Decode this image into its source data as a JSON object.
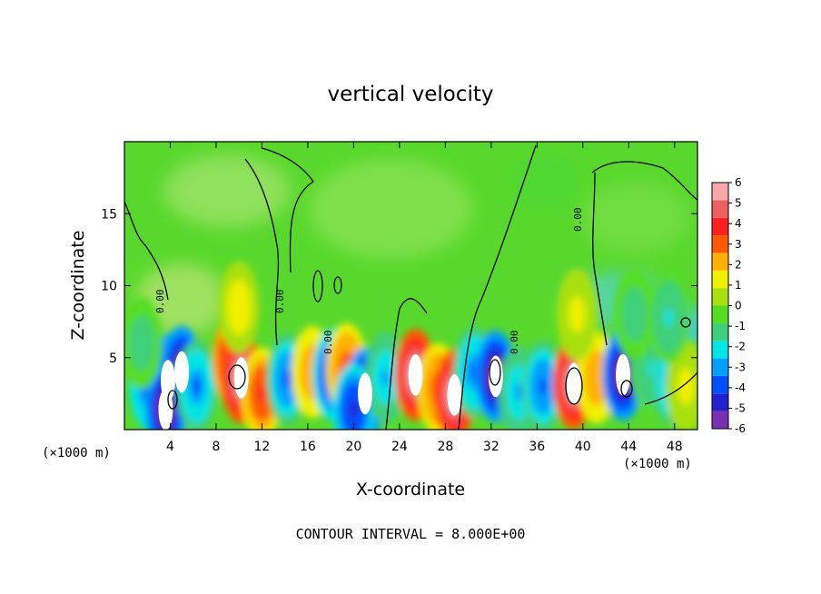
{
  "chart_data": {
    "type": "heatmap",
    "title": "vertical velocity",
    "xlabel": "X-coordinate",
    "ylabel": "Z-coordinate",
    "x_unit": "(×1000 m)",
    "y_unit": "(×1000 m)",
    "xlim": [
      0,
      50
    ],
    "ylim": [
      0,
      20
    ],
    "x_ticks": [
      4,
      8,
      12,
      16,
      20,
      24,
      28,
      32,
      36,
      40,
      44,
      48
    ],
    "y_ticks": [
      5,
      10,
      15
    ],
    "colorbar": {
      "range": [
        -6,
        6
      ],
      "labels": [
        "6",
        "5",
        "4",
        "3",
        "2",
        "1",
        "0",
        "-1",
        "-2",
        "-3",
        "-4",
        "-5",
        "-6"
      ],
      "colors": [
        "#7a2fb0",
        "#2222cc",
        "#0050ff",
        "#00a0ff",
        "#00e5e5",
        "#3fcf7a",
        "#55dd22",
        "#a8e010",
        "#f0f000",
        "#ffb000",
        "#ff5a00",
        "#ff2020",
        "#ee6060",
        "#f8a8a8"
      ]
    },
    "contour_label": "0.00",
    "contour_interval_text": "CONTOUR INTERVAL = 8.000E+00",
    "cells": [
      {
        "x": 2.2,
        "z": 3.2,
        "w": -4.6
      },
      {
        "x": 3.8,
        "z": 3.4,
        "w": -6.5
      },
      {
        "x": 5.0,
        "z": 4.0,
        "w": -6.5
      },
      {
        "x": 3.6,
        "z": 1.4,
        "w": -6.5
      },
      {
        "x": 6.3,
        "z": 3.0,
        "w": -3.5
      },
      {
        "x": 9.5,
        "z": 4.8,
        "w": 5.0
      },
      {
        "x": 10.2,
        "z": 3.6,
        "w": 6.8
      },
      {
        "x": 12.0,
        "z": 2.5,
        "w": 4.0
      },
      {
        "x": 14.2,
        "z": 3.5,
        "w": -3.8
      },
      {
        "x": 16.4,
        "z": 4.0,
        "w": 2.5
      },
      {
        "x": 18.2,
        "z": 3.8,
        "w": -5.5
      },
      {
        "x": 19.4,
        "z": 4.2,
        "w": 3.2
      },
      {
        "x": 21.0,
        "z": 2.5,
        "w": -6.5
      },
      {
        "x": 20.0,
        "z": 1.4,
        "w": -5.0
      },
      {
        "x": 22.8,
        "z": 3.6,
        "w": -3.0
      },
      {
        "x": 25.4,
        "z": 3.8,
        "w": 6.8
      },
      {
        "x": 27.4,
        "z": 2.8,
        "w": 3.5
      },
      {
        "x": 28.8,
        "z": 2.4,
        "w": 6.6
      },
      {
        "x": 30.5,
        "z": 4.0,
        "w": -3.5
      },
      {
        "x": 32.4,
        "z": 3.7,
        "w": -6.5
      },
      {
        "x": 34.4,
        "z": 2.6,
        "w": -3.0
      },
      {
        "x": 36.5,
        "z": 3.0,
        "w": -4.0
      },
      {
        "x": 39.2,
        "z": 3.2,
        "w": 7.2
      },
      {
        "x": 41.2,
        "z": 3.6,
        "w": 2.5
      },
      {
        "x": 43.5,
        "z": 3.8,
        "w": -6.5
      },
      {
        "x": 46.0,
        "z": 4.2,
        "w": -2.0
      },
      {
        "x": 47.8,
        "z": 3.5,
        "w": -3.2
      },
      {
        "x": 49.0,
        "z": 3.0,
        "w": 1.2
      },
      {
        "x": 10.0,
        "z": 8.5,
        "w": 1.5
      },
      {
        "x": 39.5,
        "z": 8.0,
        "w": 1.2
      },
      {
        "x": 44.5,
        "z": 8.0,
        "w": -1.4
      },
      {
        "x": 47.5,
        "z": 7.8,
        "w": -1.8
      },
      {
        "x": 1.5,
        "z": 6.0,
        "w": -1.5
      }
    ]
  }
}
